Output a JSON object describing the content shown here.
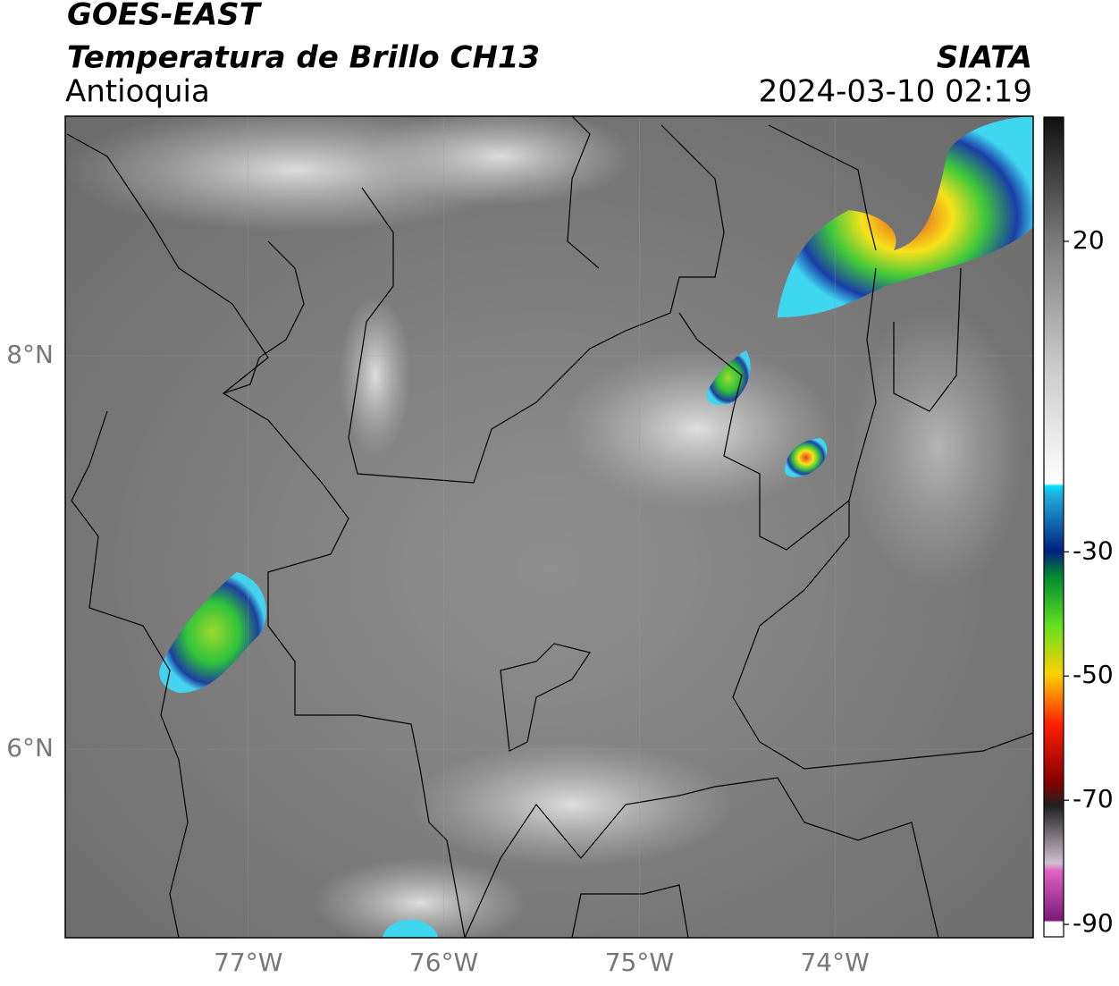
{
  "header": {
    "title": "GOES-EAST",
    "subtitle": "Temperatura de Brillo CH13",
    "region": "Antioquia",
    "source": "SIATA",
    "datetime": "2024-03-10 02:19"
  },
  "map": {
    "lonlim": [
      -77.936,
      -72.986
    ],
    "latlim": [
      5.041,
      9.218
    ],
    "lonticks": [
      {
        "value": -77,
        "label": "77°W"
      },
      {
        "value": -76,
        "label": "76°W"
      },
      {
        "value": -75,
        "label": "75°W"
      },
      {
        "value": -74,
        "label": "74°W"
      }
    ],
    "latticks": [
      {
        "value": 8,
        "label": "8°N"
      },
      {
        "value": 6,
        "label": "6°N"
      }
    ],
    "grid": true
  },
  "colorbar": {
    "lim": [
      -92,
      40
    ],
    "ticks": [
      20,
      -30,
      -50,
      -70,
      -90
    ]
  }
}
